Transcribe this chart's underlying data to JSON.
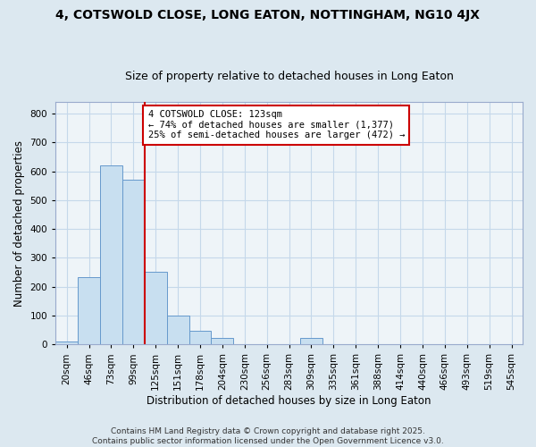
{
  "title_line1": "4, COTSWOLD CLOSE, LONG EATON, NOTTINGHAM, NG10 4JX",
  "title_line2": "Size of property relative to detached houses in Long Eaton",
  "xlabel": "Distribution of detached houses by size in Long Eaton",
  "ylabel": "Number of detached properties",
  "bar_labels": [
    "20sqm",
    "46sqm",
    "73sqm",
    "99sqm",
    "125sqm",
    "151sqm",
    "178sqm",
    "204sqm",
    "230sqm",
    "256sqm",
    "283sqm",
    "309sqm",
    "335sqm",
    "361sqm",
    "388sqm",
    "414sqm",
    "440sqm",
    "466sqm",
    "493sqm",
    "519sqm",
    "545sqm"
  ],
  "bar_values": [
    10,
    232,
    620,
    572,
    252,
    100,
    47,
    22,
    0,
    0,
    0,
    22,
    0,
    0,
    0,
    0,
    0,
    0,
    0,
    0,
    0
  ],
  "bar_color": "#c8dff0",
  "bar_edge_color": "#6699cc",
  "vline_index": 4,
  "vline_color": "#cc0000",
  "annotation_text": "4 COTSWOLD CLOSE: 123sqm\n← 74% of detached houses are smaller (1,377)\n25% of semi-detached houses are larger (472) →",
  "annotation_box_facecolor": "white",
  "annotation_box_edgecolor": "#cc0000",
  "grid_color": "#c5d8ea",
  "background_color": "#dce8f0",
  "plot_background": "#eef4f8",
  "ylim": [
    0,
    840
  ],
  "yticks": [
    0,
    100,
    200,
    300,
    400,
    500,
    600,
    700,
    800
  ],
  "footer_line1": "Contains HM Land Registry data © Crown copyright and database right 2025.",
  "footer_line2": "Contains public sector information licensed under the Open Government Licence v3.0.",
  "title_fontsize": 10,
  "subtitle_fontsize": 9,
  "axis_label_fontsize": 8.5,
  "tick_fontsize": 7.5,
  "annotation_fontsize": 7.5,
  "footer_fontsize": 6.5
}
